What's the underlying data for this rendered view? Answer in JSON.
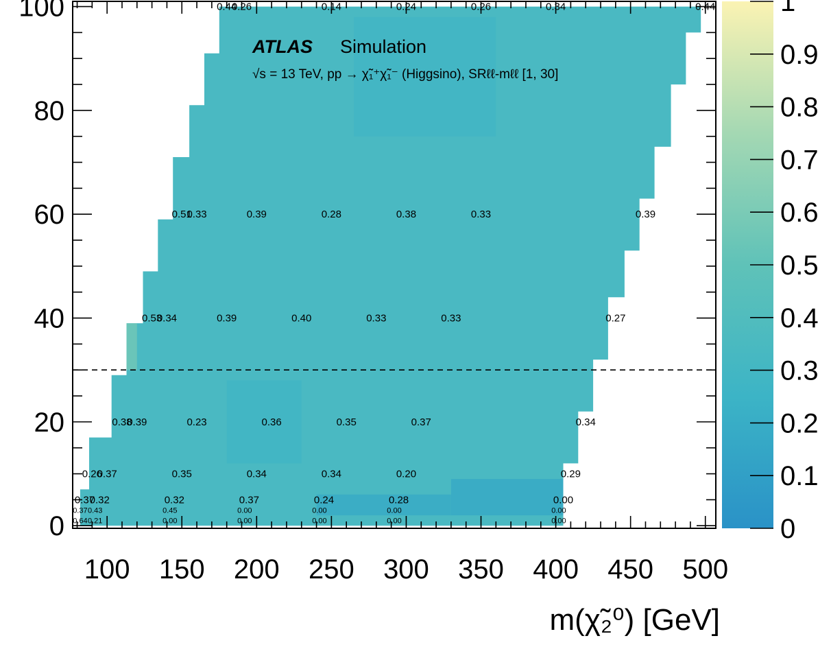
{
  "chart_data": {
    "type": "heatmap",
    "title": "ATLAS Simulation",
    "subtitle": "√s = 13 TeV, pp → χ̃₁⁺χ̃₁⁻ (Higgsino), SRℓℓ-mℓℓ [1, 30]",
    "brand": "ATLAS",
    "brand_suffix": "Simulation",
    "xlabel": "m(χ̃₂⁰) [GeV]",
    "ylabel": "",
    "xlim": [
      77,
      507
    ],
    "ylim": [
      -0.5,
      101
    ],
    "x_ticks": [
      "100",
      "150",
      "200",
      "250",
      "300",
      "350",
      "400",
      "450",
      "500"
    ],
    "y_ticks": [
      "0",
      "20",
      "40",
      "60",
      "80",
      "100"
    ],
    "z_range": [
      0,
      1
    ],
    "colorbar_ticks": [
      "0",
      "0.1",
      "0.2",
      "0.3",
      "0.4",
      "0.5",
      "0.6",
      "0.7",
      "0.8",
      "0.9",
      "1"
    ],
    "colorscale": [
      "#2a92c7",
      "#3cb4c6",
      "#5fc2b8",
      "#a4d8b3",
      "#fbf3b3"
    ],
    "dashed_line_y": 30,
    "region_boundary": [
      [
        82,
        0
      ],
      [
        82,
        7
      ],
      [
        88,
        7
      ],
      [
        88,
        17
      ],
      [
        103,
        17
      ],
      [
        103,
        29
      ],
      [
        113,
        29
      ],
      [
        113,
        39
      ],
      [
        124,
        39
      ],
      [
        124,
        49
      ],
      [
        134,
        49
      ],
      [
        134,
        59
      ],
      [
        144,
        59
      ],
      [
        144,
        71
      ],
      [
        155,
        71
      ],
      [
        155,
        81
      ],
      [
        165,
        81
      ],
      [
        165,
        91
      ],
      [
        175,
        91
      ],
      [
        175,
        100
      ],
      [
        497,
        100
      ],
      [
        497,
        95
      ],
      [
        487,
        95
      ],
      [
        487,
        85
      ],
      [
        477,
        85
      ],
      [
        477,
        73
      ],
      [
        466,
        73
      ],
      [
        466,
        63
      ],
      [
        456,
        63
      ],
      [
        456,
        53
      ],
      [
        446,
        53
      ],
      [
        446,
        44
      ],
      [
        435,
        44
      ],
      [
        435,
        32
      ],
      [
        425,
        32
      ],
      [
        425,
        22
      ],
      [
        415,
        22
      ],
      [
        415,
        12
      ],
      [
        405,
        12
      ],
      [
        405,
        0
      ]
    ],
    "color_zones": [
      {
        "x": [
          240,
          330
        ],
        "y": [
          2,
          6
        ],
        "value": 0.18
      },
      {
        "x": [
          330,
          405
        ],
        "y": [
          2,
          9
        ],
        "value": 0.16
      },
      {
        "x": [
          265,
          360
        ],
        "y": [
          75,
          98
        ],
        "value": 0.29
      },
      {
        "x": [
          180,
          230
        ],
        "y": [
          12,
          28
        ],
        "value": 0.28
      },
      {
        "x": [
          82,
          120
        ],
        "y": [
          30,
          45
        ],
        "value": 0.58
      }
    ],
    "values": [
      {
        "x": 180,
        "y": 100,
        "label": "0.44",
        "value": 0.44
      },
      {
        "x": 190,
        "y": 100,
        "label": "0.26",
        "value": 0.26
      },
      {
        "x": 250,
        "y": 100,
        "label": "0.14",
        "value": 0.14
      },
      {
        "x": 300,
        "y": 100,
        "label": "0.24",
        "value": 0.24
      },
      {
        "x": 350,
        "y": 100,
        "label": "0.26",
        "value": 0.26
      },
      {
        "x": 400,
        "y": 100,
        "label": "0.34",
        "value": 0.34
      },
      {
        "x": 500,
        "y": 100,
        "label": "0.44",
        "value": 0.44
      },
      {
        "x": 150,
        "y": 60,
        "label": "0.51",
        "value": 0.51
      },
      {
        "x": 160,
        "y": 60,
        "label": "0.33",
        "value": 0.33
      },
      {
        "x": 200,
        "y": 60,
        "label": "0.39",
        "value": 0.39
      },
      {
        "x": 250,
        "y": 60,
        "label": "0.28",
        "value": 0.28
      },
      {
        "x": 300,
        "y": 60,
        "label": "0.38",
        "value": 0.38
      },
      {
        "x": 350,
        "y": 60,
        "label": "0.33",
        "value": 0.33
      },
      {
        "x": 460,
        "y": 60,
        "label": "0.39",
        "value": 0.39
      },
      {
        "x": 130,
        "y": 40,
        "label": "0.53",
        "value": 0.53
      },
      {
        "x": 140,
        "y": 40,
        "label": "0.34",
        "value": 0.34
      },
      {
        "x": 180,
        "y": 40,
        "label": "0.39",
        "value": 0.39
      },
      {
        "x": 230,
        "y": 40,
        "label": "0.40",
        "value": 0.4
      },
      {
        "x": 280,
        "y": 40,
        "label": "0.33",
        "value": 0.33
      },
      {
        "x": 330,
        "y": 40,
        "label": "0.33",
        "value": 0.33
      },
      {
        "x": 440,
        "y": 40,
        "label": "0.27",
        "value": 0.27
      },
      {
        "x": 110,
        "y": 20,
        "label": "0.38",
        "value": 0.38
      },
      {
        "x": 120,
        "y": 20,
        "label": "0.39",
        "value": 0.39
      },
      {
        "x": 160,
        "y": 20,
        "label": "0.23",
        "value": 0.23
      },
      {
        "x": 210,
        "y": 20,
        "label": "0.36",
        "value": 0.36
      },
      {
        "x": 260,
        "y": 20,
        "label": "0.35",
        "value": 0.35
      },
      {
        "x": 310,
        "y": 20,
        "label": "0.37",
        "value": 0.37
      },
      {
        "x": 420,
        "y": 20,
        "label": "0.34",
        "value": 0.34
      },
      {
        "x": 90,
        "y": 10,
        "label": "0.26",
        "value": 0.26
      },
      {
        "x": 100,
        "y": 10,
        "label": "0.37",
        "value": 0.37
      },
      {
        "x": 150,
        "y": 10,
        "label": "0.35",
        "value": 0.35
      },
      {
        "x": 200,
        "y": 10,
        "label": "0.34",
        "value": 0.34
      },
      {
        "x": 250,
        "y": 10,
        "label": "0.34",
        "value": 0.34
      },
      {
        "x": 300,
        "y": 10,
        "label": "0.20",
        "value": 0.2
      },
      {
        "x": 410,
        "y": 10,
        "label": "0.29",
        "value": 0.29
      },
      {
        "x": 85,
        "y": 5,
        "label": "0.37",
        "value": 0.37
      },
      {
        "x": 95,
        "y": 5,
        "label": "0.32",
        "value": 0.32
      },
      {
        "x": 145,
        "y": 5,
        "label": "0.32",
        "value": 0.32
      },
      {
        "x": 195,
        "y": 5,
        "label": "0.37",
        "value": 0.37
      },
      {
        "x": 245,
        "y": 5,
        "label": "0.24",
        "value": 0.24
      },
      {
        "x": 295,
        "y": 5,
        "label": "0.28",
        "value": 0.28
      },
      {
        "x": 405,
        "y": 5,
        "label": "0.00",
        "value": 0.0
      },
      {
        "x": 82,
        "y": 3,
        "label": "0.37",
        "value": 0.37,
        "small": true
      },
      {
        "x": 92,
        "y": 3,
        "label": "0.43",
        "value": 0.43,
        "small": true
      },
      {
        "x": 142,
        "y": 3,
        "label": "0.45",
        "value": 0.45,
        "small": true
      },
      {
        "x": 192,
        "y": 3,
        "label": "0.00",
        "value": 0.0,
        "small": true
      },
      {
        "x": 242,
        "y": 3,
        "label": "0.00",
        "value": 0.0,
        "small": true
      },
      {
        "x": 292,
        "y": 3,
        "label": "0.00",
        "value": 0.0,
        "small": true
      },
      {
        "x": 402,
        "y": 3,
        "label": "0.00",
        "value": 0.0,
        "small": true
      },
      {
        "x": 82,
        "y": 1,
        "label": "0.64",
        "value": 0.64,
        "small": true
      },
      {
        "x": 92,
        "y": 1,
        "label": "0.21",
        "value": 0.21,
        "small": true
      },
      {
        "x": 142,
        "y": 1,
        "label": "0.00",
        "value": 0.0,
        "small": true
      },
      {
        "x": 192,
        "y": 1,
        "label": "0.00",
        "value": 0.0,
        "small": true
      },
      {
        "x": 242,
        "y": 1,
        "label": "0.00",
        "value": 0.0,
        "small": true
      },
      {
        "x": 292,
        "y": 1,
        "label": "0.00",
        "value": 0.0,
        "small": true
      },
      {
        "x": 402,
        "y": 1,
        "label": "0.00",
        "value": 0.0,
        "small": true
      }
    ]
  }
}
